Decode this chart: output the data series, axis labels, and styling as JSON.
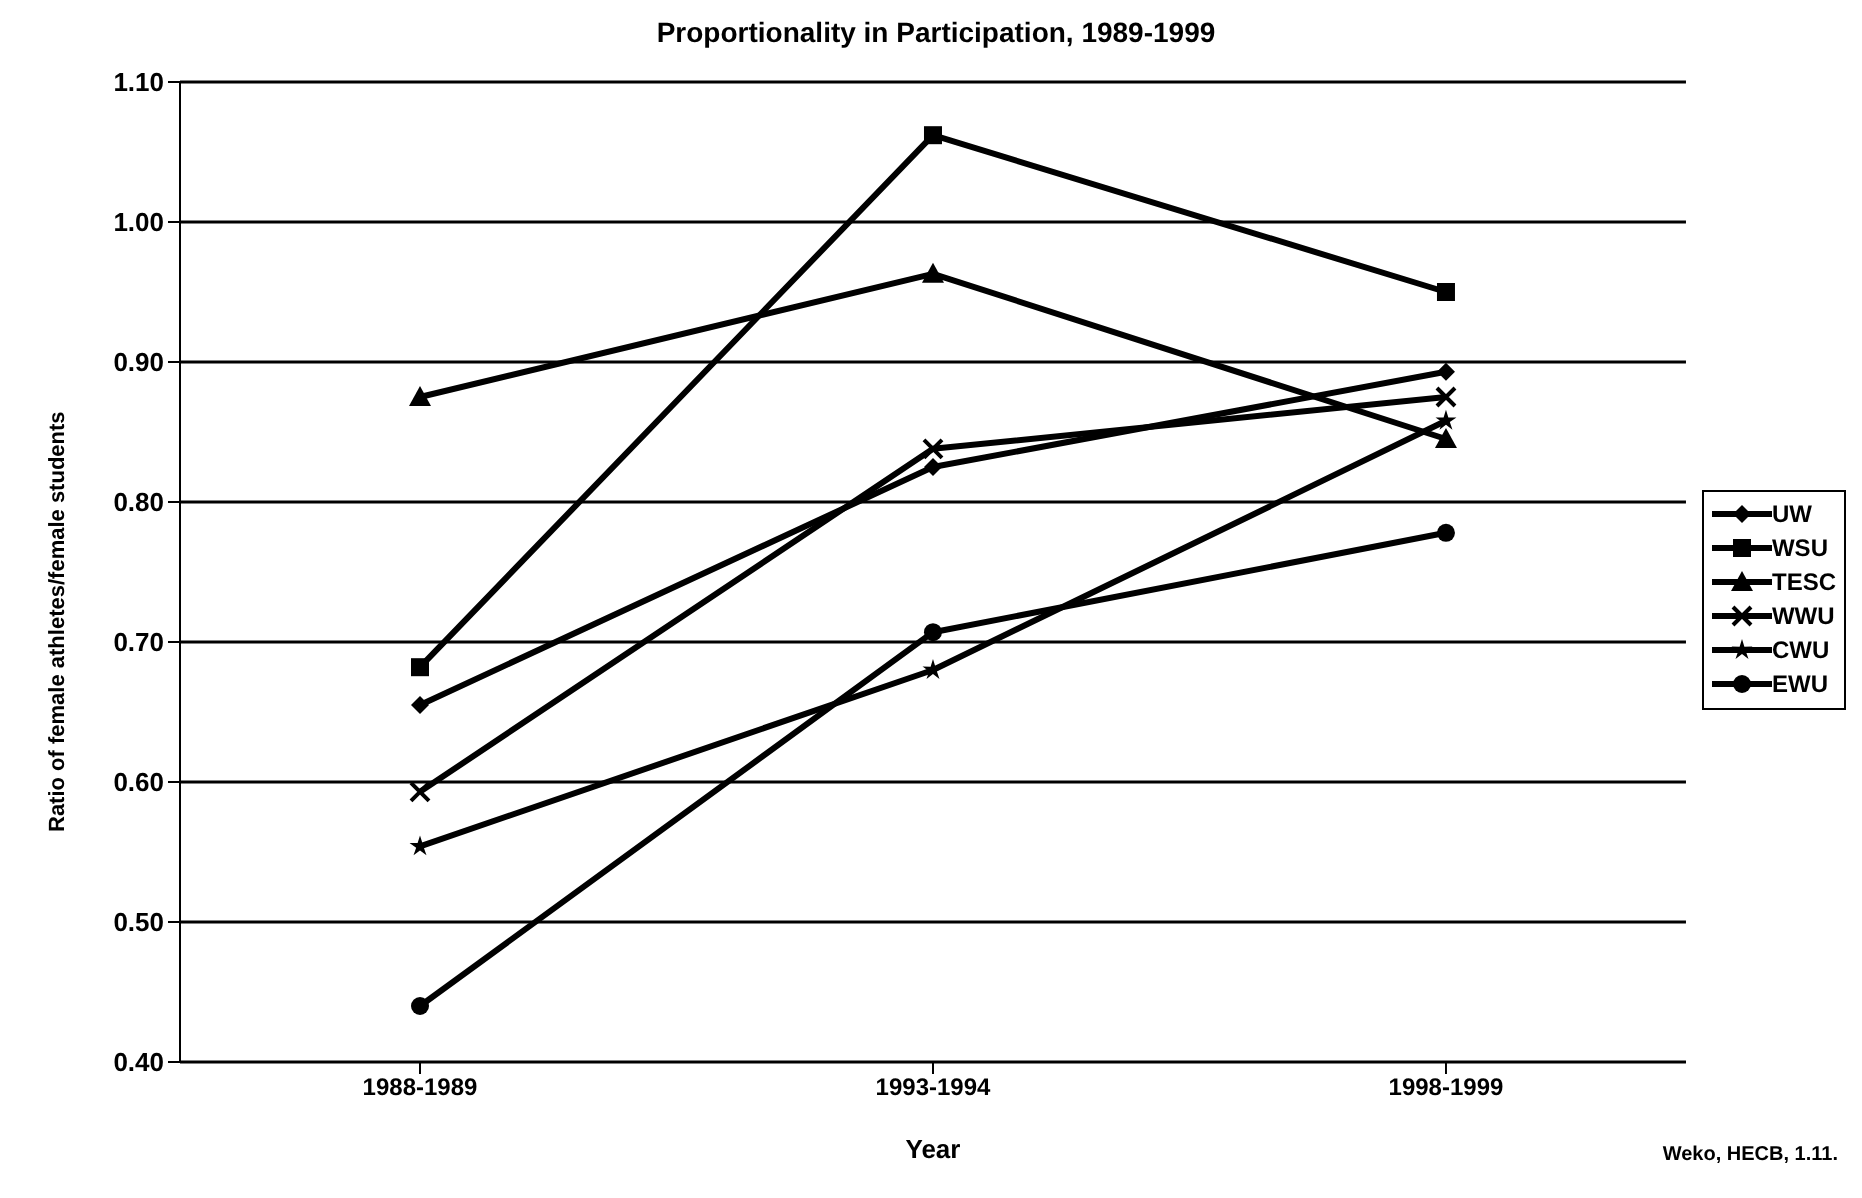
{
  "chart_data": {
    "type": "line",
    "title": "Proportionality in Participation, 1989-1999",
    "xlabel": "Year",
    "ylabel": "Ratio of female athletes/female students",
    "categories": [
      "1988-1989",
      "1993-1994",
      "1998-1999"
    ],
    "series": [
      {
        "name": "UW",
        "color": "#000000",
        "marker": "diamond",
        "values": [
          0.655,
          0.825,
          0.893
        ]
      },
      {
        "name": "WSU",
        "color": "#000000",
        "marker": "square",
        "values": [
          0.682,
          1.062,
          0.95
        ]
      },
      {
        "name": "TESC",
        "color": "#000000",
        "marker": "triangle",
        "values": [
          0.875,
          0.963,
          0.845
        ]
      },
      {
        "name": "WWU",
        "color": "#000000",
        "marker": "cross",
        "values": [
          0.593,
          0.838,
          0.875
        ]
      },
      {
        "name": "CWU",
        "color": "#000000",
        "marker": "star",
        "values": [
          0.554,
          0.68,
          0.858
        ]
      },
      {
        "name": "EWU",
        "color": "#000000",
        "marker": "circle",
        "values": [
          0.44,
          0.707,
          0.778
        ]
      }
    ],
    "ylim": [
      0.4,
      1.1
    ],
    "yticks": [
      {
        "value": 0.4,
        "label": "0.40"
      },
      {
        "value": 0.5,
        "label": "0.50"
      },
      {
        "value": 0.6,
        "label": "0.60"
      },
      {
        "value": 0.7,
        "label": "0.70"
      },
      {
        "value": 0.8,
        "label": "0.80"
      },
      {
        "value": 0.9,
        "label": "0.90"
      },
      {
        "value": 1.0,
        "label": "1.00"
      },
      {
        "value": 1.1,
        "label": "1.10"
      }
    ],
    "grid": "y",
    "legend": "right",
    "line_style": "solid",
    "annotations": [
      "Weko, HECB, 1.11."
    ]
  }
}
